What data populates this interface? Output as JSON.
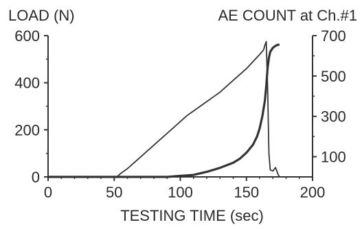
{
  "chart_data": {
    "type": "line",
    "xlabel": "TESTING TIME (sec)",
    "ylabel_left": "LOAD (N)",
    "ylabel_right": "AE COUNT at Ch.#1",
    "xlim": [
      0,
      200
    ],
    "ylim_left": [
      0,
      600
    ],
    "ylim_right": [
      0,
      700
    ],
    "x_ticks": [
      0,
      50,
      100,
      150,
      200
    ],
    "y_ticks_left": [
      0,
      200,
      400,
      600
    ],
    "y_ticks_right": [
      100,
      300,
      500,
      700
    ],
    "grid": false,
    "legend": "none",
    "series": [
      {
        "axis": "left",
        "color": "#333333",
        "style": "thin",
        "x": [
          0,
          52,
          55,
          60,
          65,
          70,
          75,
          80,
          85,
          90,
          95,
          100,
          105,
          110,
          115,
          120,
          125,
          130,
          135,
          140,
          145,
          150,
          155,
          160,
          163,
          164,
          165,
          166,
          167,
          168,
          170,
          172,
          174,
          175
        ],
        "y": [
          0,
          0,
          15,
          35,
          60,
          85,
          110,
          135,
          160,
          185,
          210,
          235,
          260,
          280,
          300,
          320,
          340,
          360,
          385,
          410,
          435,
          460,
          490,
          520,
          540,
          560,
          575,
          380,
          100,
          30,
          25,
          40,
          10,
          0
        ]
      },
      {
        "axis": "right",
        "color": "#333333",
        "style": "thick",
        "x": [
          0,
          90,
          100,
          110,
          120,
          130,
          140,
          145,
          150,
          155,
          158,
          160,
          162,
          164,
          165,
          166,
          167,
          168,
          170,
          172,
          174,
          175
        ],
        "y": [
          0,
          0,
          5,
          10,
          25,
          45,
          70,
          90,
          120,
          160,
          200,
          240,
          300,
          380,
          450,
          540,
          590,
          620,
          640,
          650,
          655,
          655
        ]
      }
    ]
  }
}
